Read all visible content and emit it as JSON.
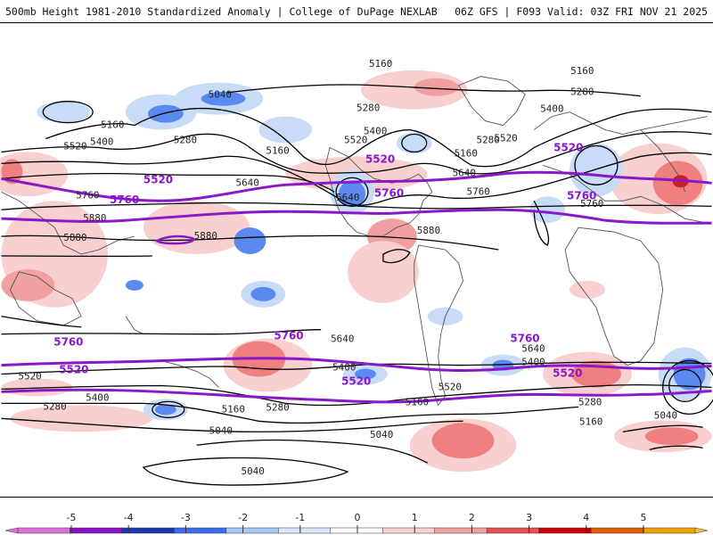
{
  "header": {
    "title": "500mb Height 1981-2010 Standardized Anomaly | College of DuPage NEXLAB",
    "run_info": "06Z GFS | F093 Valid: 03Z FRI NOV 21 2025"
  },
  "map": {
    "contour_labels": [
      "5160",
      "5160",
      "5040",
      "5280",
      "5280",
      "5400",
      "5160",
      "5520",
      "5400",
      "5280",
      "5160",
      "5400",
      "5520",
      "5280",
      "5160",
      "5640",
      "5640",
      "5760",
      "5880",
      "5880",
      "5880",
      "5880",
      "5760",
      "5640",
      "5760",
      "5640",
      "5400",
      "5520",
      "5280",
      "5160",
      "5520",
      "5400",
      "5280",
      "5040",
      "5040",
      "5040",
      "5160",
      "5280",
      "5160",
      "5400",
      "5640",
      "5040",
      "5520"
    ],
    "special_contour_labels": [
      "5520",
      "5520",
      "5520",
      "5520",
      "5520",
      "5760",
      "5760",
      "5760",
      "5760",
      "5760",
      "5760"
    ]
  },
  "colorbar": {
    "ticks": [
      "-5",
      "-4",
      "-3",
      "-2",
      "-1",
      "0",
      "1",
      "2",
      "3",
      "4",
      "5"
    ],
    "colors": [
      "#c040c0",
      "#8a10c8",
      "#1a3ab0",
      "#3a6ef0",
      "#a8c8f8",
      "#dbe8fb",
      "#ffffff",
      "#f8d2d2",
      "#f0a0a0",
      "#e85050",
      "#c80000",
      "#e06000",
      "#f0a000",
      "#f8c040"
    ]
  }
}
